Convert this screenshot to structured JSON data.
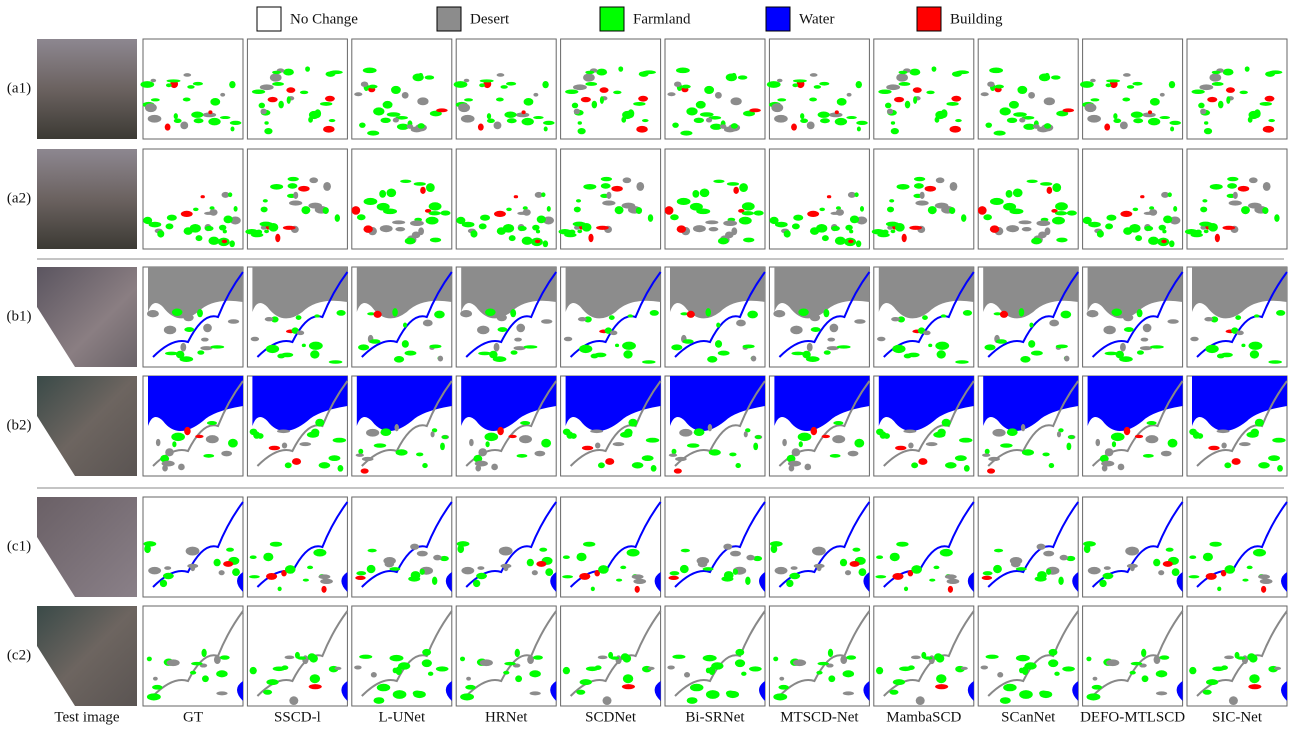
{
  "legend": [
    "No Change",
    "Desert",
    "Farmland",
    "Water",
    "Building"
  ],
  "rows": [
    "(a1)",
    "(a2)",
    "(b1)",
    "(b2)",
    "(c1)",
    "(c2)"
  ],
  "columns": [
    "Test image",
    "GT",
    "SSCD-l",
    "L-UNet",
    "HRNet",
    "SCDNet",
    "Bi-SRNet",
    "MTSCD-Net",
    "MambaSCD",
    "SCanNet",
    "DEFO-MTLSCD",
    "SIC-Net"
  ]
}
